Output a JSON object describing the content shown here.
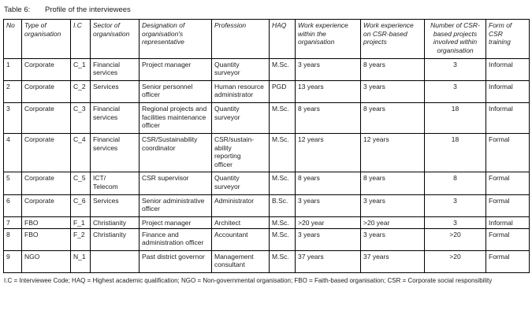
{
  "caption": {
    "label": "Table 6:",
    "text": "Profile of the interviewees"
  },
  "table": {
    "columns": [
      "No",
      "Type of organisation",
      "I.C",
      "Sector of organisation",
      "Designation of organisation's representative",
      "Profession",
      "HAQ",
      "Work experience within the organisation",
      "Work experience on CSR-based projects",
      "Number of CSR-based projects involved within organisation",
      "Form of CSR training"
    ],
    "centered_column_index": 9,
    "rows": [
      [
        "1",
        "Corporate",
        "C_1",
        "Financial services",
        "Project manager",
        "Quantity surveyor",
        "M.Sc.",
        "3 years",
        "8 years",
        "3",
        "Informal"
      ],
      [
        "2",
        "Corporate",
        "C_2",
        "Services",
        "Senior personnel officer",
        "Human resource administrator",
        "PGD",
        "13 years",
        "3 years",
        "3",
        "Informal"
      ],
      [
        "3",
        "Corporate",
        "C_3",
        "Financial services",
        "Regional projects and facilities maintenance officer",
        "Quantity surveyor",
        "M.Sc.",
        "8 years",
        "8 years",
        "18",
        "Informal"
      ],
      [
        "4",
        "Corporate",
        "C_4",
        "Financial services",
        "CSR/Sustainability coordinator",
        "CSR/sustain-\nability\nreporting\nofficer",
        "M.Sc.",
        "12 years",
        "12 years",
        "18",
        "Formal"
      ],
      [
        "5",
        "Corporate",
        "C_5",
        "ICT/\nTelecom",
        "CSR supervisor",
        "Quantity surveyor",
        "M.Sc.",
        "8 years",
        "8 years",
        "8",
        "Formal"
      ],
      [
        "6",
        "Corporate",
        "C_6",
        "Services",
        "Senior administrative officer",
        "Administrator",
        "B.Sc.",
        "3 years",
        "3 years",
        "3",
        "Formal"
      ],
      [
        "7",
        "FBO",
        "F_1",
        "Christianity",
        "Project manager",
        "Architect",
        "M.Sc.",
        ">20 year",
        ">20 year",
        "3",
        "Informal"
      ],
      [
        "8",
        "FBO",
        "F_2",
        "Christianity",
        "Finance and administration officer",
        "Accountant",
        "M.Sc.",
        "3 years",
        "3 years",
        ">20",
        "Formal"
      ],
      [
        "9",
        "NGO",
        "N_1",
        "",
        "Past district governor",
        "Management consultant",
        "M.Sc.",
        "37 years",
        "37 years",
        ">20",
        "Formal"
      ]
    ],
    "tight_row_indexes": [
      6
    ]
  },
  "footnote": "I.C = Interviewee Code; HAQ = Highest academic qualification; NGO = Non-governmental organisation; FBO = Faith-based organisation; CSR = Corporate social responsibility"
}
